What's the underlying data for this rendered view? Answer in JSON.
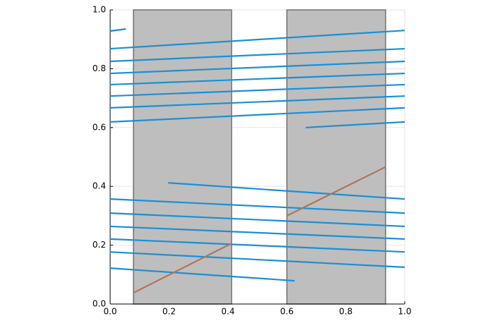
{
  "chart_data": {
    "type": "line",
    "xlim": [
      0,
      1
    ],
    "ylim": [
      0,
      1
    ],
    "xticks": [
      {
        "value": 0,
        "label": "0.0"
      },
      {
        "value": 0.2,
        "label": "0.2"
      },
      {
        "value": 0.4,
        "label": "0.4"
      },
      {
        "value": 0.6,
        "label": "0.6"
      },
      {
        "value": 0.8,
        "label": "0.8"
      },
      {
        "value": 1,
        "label": "1.0"
      }
    ],
    "yticks": [
      {
        "value": 0,
        "label": "0.0"
      },
      {
        "value": 0.2,
        "label": "0.2"
      },
      {
        "value": 0.4,
        "label": "0.4"
      },
      {
        "value": 0.6,
        "label": "0.6"
      },
      {
        "value": 0.8,
        "label": "0.8"
      },
      {
        "value": 1,
        "label": "1.0"
      }
    ],
    "grid": true,
    "spans": [
      {
        "x": [
          0.079,
          0.412
        ],
        "color": "#bebebe"
      },
      {
        "x": [
          0.6,
          0.935
        ],
        "color": "#bebebe"
      }
    ],
    "series": [
      {
        "color": "#1a8fd6",
        "x": [
          0,
          0.053
        ],
        "values": [
          0.928,
          0.935
        ]
      },
      {
        "color": "#1a8fd6",
        "x": [
          0,
          1
        ],
        "values": [
          0.868,
          0.93
        ]
      },
      {
        "color": "#1a8fd6",
        "x": [
          0,
          1
        ],
        "values": [
          0.825,
          0.868
        ]
      },
      {
        "color": "#1a8fd6",
        "x": [
          0,
          1
        ],
        "values": [
          0.784,
          0.825
        ]
      },
      {
        "color": "#1a8fd6",
        "x": [
          0,
          1
        ],
        "values": [
          0.746,
          0.784
        ]
      },
      {
        "color": "#1a8fd6",
        "x": [
          0,
          1
        ],
        "values": [
          0.707,
          0.746
        ]
      },
      {
        "color": "#1a8fd6",
        "x": [
          0,
          1
        ],
        "values": [
          0.667,
          0.707
        ]
      },
      {
        "color": "#1a8fd6",
        "x": [
          0,
          1
        ],
        "values": [
          0.619,
          0.667
        ]
      },
      {
        "color": "#1a8fd6",
        "x": [
          0.664,
          1
        ],
        "values": [
          0.6,
          0.619
        ]
      },
      {
        "color": "#1a8fd6",
        "x": [
          0.197,
          1
        ],
        "values": [
          0.412,
          0.357
        ]
      },
      {
        "color": "#1a8fd6",
        "x": [
          0,
          1
        ],
        "values": [
          0.357,
          0.309
        ]
      },
      {
        "color": "#1a8fd6",
        "x": [
          0,
          1
        ],
        "values": [
          0.309,
          0.264
        ]
      },
      {
        "color": "#1a8fd6",
        "x": [
          0,
          1
        ],
        "values": [
          0.264,
          0.221
        ]
      },
      {
        "color": "#1a8fd6",
        "x": [
          0,
          1
        ],
        "values": [
          0.221,
          0.177
        ]
      },
      {
        "color": "#1a8fd6",
        "x": [
          0,
          1
        ],
        "values": [
          0.177,
          0.125
        ]
      },
      {
        "color": "#1a8fd6",
        "x": [
          0,
          0.626
        ],
        "values": [
          0.122,
          0.079
        ]
      },
      {
        "color": "#b47358",
        "x": [
          0.079,
          0.412
        ],
        "values": [
          0.038,
          0.206
        ]
      },
      {
        "color": "#b47358",
        "x": [
          0.6,
          0.935
        ],
        "values": [
          0.3,
          0.466
        ]
      }
    ]
  }
}
